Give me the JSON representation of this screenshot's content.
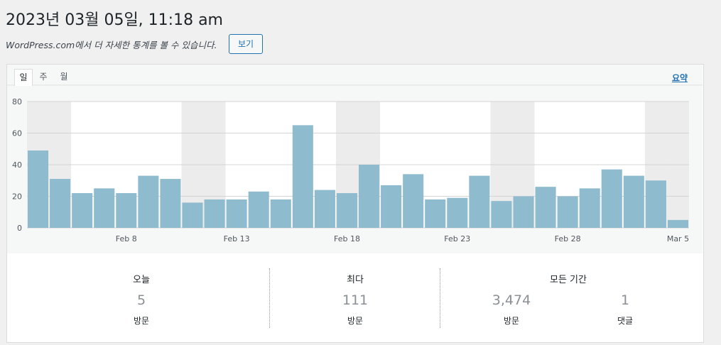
{
  "header": {
    "title": "2023년 03월 05일, 11:18 am",
    "subtitle": "WordPress.com에서 더 자세한 통계를 볼 수 있습니다.",
    "button": "보기"
  },
  "tabs": [
    "일",
    "주",
    "월"
  ],
  "summary_link": "요약",
  "chart_data": {
    "type": "bar",
    "categories": [
      null,
      null,
      null,
      null,
      "Feb 8",
      null,
      null,
      null,
      null,
      "Feb 13",
      null,
      null,
      null,
      null,
      "Feb 18",
      null,
      null,
      null,
      null,
      "Feb 23",
      null,
      null,
      null,
      null,
      "Feb 28",
      null,
      null,
      null,
      null,
      "Mar 5"
    ],
    "values": [
      49,
      31,
      22,
      25,
      22,
      33,
      31,
      16,
      18,
      18,
      23,
      18,
      65,
      24,
      22,
      40,
      27,
      34,
      18,
      19,
      33,
      17,
      20,
      26,
      20,
      25,
      37,
      33,
      30,
      5
    ],
    "color": "#8fbbcf",
    "ylim": [
      0,
      80
    ],
    "yticks": [
      0,
      20,
      40,
      60,
      80
    ],
    "grid": true
  },
  "stats": [
    {
      "label": "오늘",
      "value": "5",
      "unit": "방문"
    },
    {
      "label": "최다",
      "value": "111",
      "unit": "방문"
    },
    {
      "label": "모든 기간",
      "items": [
        {
          "value": "3,474",
          "unit": "방문"
        },
        {
          "value": "1",
          "unit": "댓글"
        }
      ]
    }
  ]
}
